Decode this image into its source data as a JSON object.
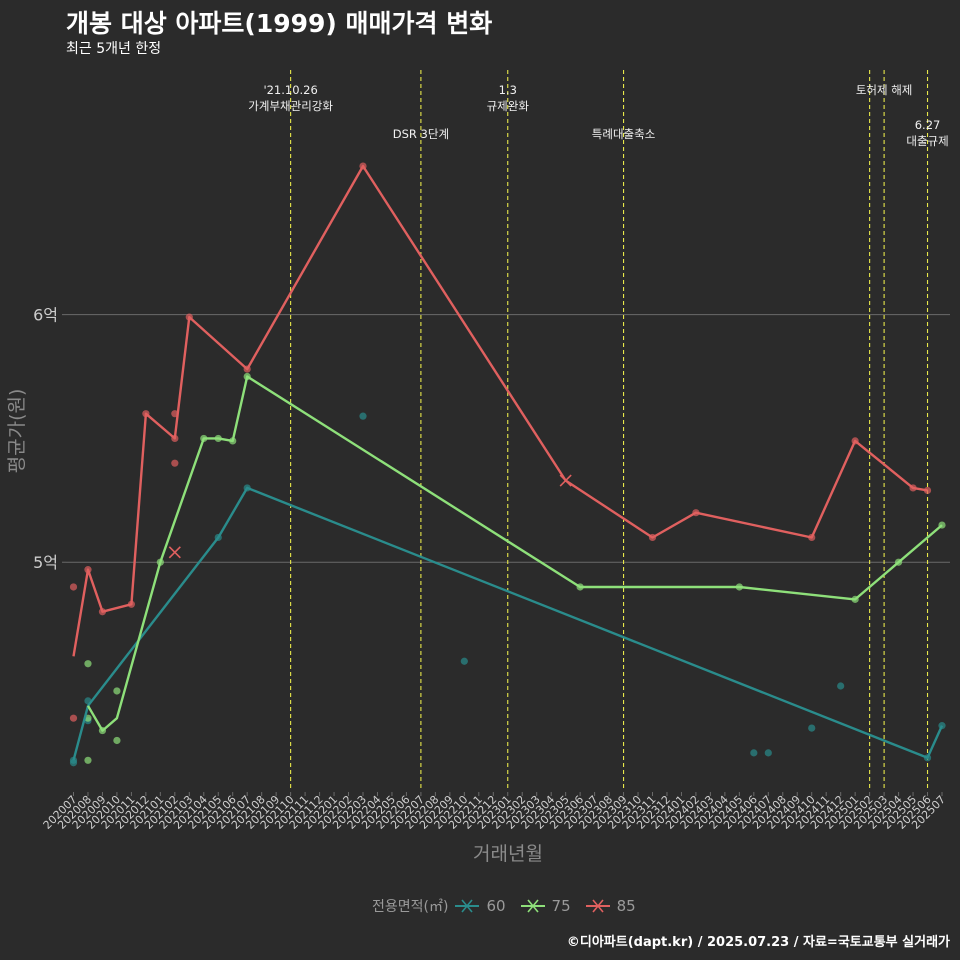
{
  "header": {
    "title": "개봉 대상 아파트(1999) 매매가격 변화",
    "subtitle": "최근 5개년 한정",
    "caption": "©디아파트(dapt.kr) / 2025.07.23 / 자료=국토교통부 실거래가"
  },
  "colors": {
    "background": "#2b2b2b",
    "s60": "#2a8c8c",
    "s75": "#8ee07a",
    "s85": "#e0605f",
    "event_line": "#e8e84a",
    "gridline": "#6a6a6a"
  },
  "legend": {
    "title": "전용면적(㎡)",
    "items": [
      "60",
      "75",
      "85"
    ]
  },
  "chart_data": {
    "type": "line",
    "title": "개봉 대상 아파트(1999) 매매가격 변화",
    "subtitle": "최근 5개년 한정",
    "xlabel": "거래년월",
    "ylabel": "평균가(원)",
    "y_unit": "억",
    "ylim": [
      4.08,
      6.98
    ],
    "yticks": [
      5,
      6
    ],
    "ytick_labels": [
      "5억",
      "6억"
    ],
    "grid": true,
    "legend_position": "bottom",
    "categories": [
      "202007",
      "202008",
      "202009",
      "202010",
      "202011",
      "202012",
      "202101",
      "202102",
      "202103",
      "202104",
      "202105",
      "202106",
      "202107",
      "202108",
      "202109",
      "202110",
      "202111",
      "202112",
      "202201",
      "202202",
      "202203",
      "202204",
      "202205",
      "202206",
      "202207",
      "202208",
      "202209",
      "202210",
      "202211",
      "202212",
      "202301",
      "202302",
      "202303",
      "202304",
      "202305",
      "202306",
      "202307",
      "202308",
      "202309",
      "202310",
      "202311",
      "202312",
      "202401",
      "202402",
      "202403",
      "202404",
      "202405",
      "202406",
      "202407",
      "202408",
      "202409",
      "202410",
      "202411",
      "202412",
      "202501",
      "202502",
      "202503",
      "202504",
      "202505",
      "202506",
      "202507"
    ],
    "series": [
      {
        "name": "60",
        "line": [
          [
            "202007",
            4.2
          ],
          [
            "202008",
            4.42
          ],
          [
            "202105",
            5.1
          ],
          [
            "202107",
            5.3
          ],
          [
            "202506",
            4.21
          ],
          [
            "202507",
            4.34
          ]
        ],
        "points": [
          [
            "202007",
            4.19
          ],
          [
            "202007",
            4.2
          ],
          [
            "202008",
            4.36
          ],
          [
            "202008",
            4.44
          ],
          [
            "202105",
            5.1
          ],
          [
            "202107",
            5.3
          ],
          [
            "202203",
            5.59
          ],
          [
            "202210",
            4.6
          ],
          [
            "202406",
            4.23
          ],
          [
            "202407",
            4.23
          ],
          [
            "202410",
            4.33
          ],
          [
            "202412",
            4.5
          ],
          [
            "202506",
            4.21
          ],
          [
            "202507",
            4.34
          ]
        ],
        "cancelled": []
      },
      {
        "name": "75",
        "line": [
          [
            "202008",
            4.42
          ],
          [
            "202009",
            4.32
          ],
          [
            "202010",
            4.37
          ],
          [
            "202101",
            5.0
          ],
          [
            "202104",
            5.5
          ],
          [
            "202105",
            5.5
          ],
          [
            "202106",
            5.49
          ],
          [
            "202107",
            5.75
          ],
          [
            "202306",
            4.9
          ],
          [
            "202405",
            4.9
          ],
          [
            "202501",
            4.85
          ],
          [
            "202504",
            5.0
          ],
          [
            "202507",
            5.15
          ]
        ],
        "points": [
          [
            "202008",
            4.59
          ],
          [
            "202008",
            4.2
          ],
          [
            "202008",
            4.37
          ],
          [
            "202009",
            4.32
          ],
          [
            "202010",
            4.48
          ],
          [
            "202010",
            4.28
          ],
          [
            "202101",
            5.0
          ],
          [
            "202104",
            5.5
          ],
          [
            "202105",
            5.5
          ],
          [
            "202106",
            5.49
          ],
          [
            "202107",
            5.75
          ],
          [
            "202306",
            4.9
          ],
          [
            "202405",
            4.9
          ],
          [
            "202501",
            4.85
          ],
          [
            "202504",
            5.0
          ],
          [
            "202507",
            5.15
          ]
        ],
        "cancelled": []
      },
      {
        "name": "85",
        "line": [
          [
            "202007",
            4.62
          ],
          [
            "202008",
            4.97
          ],
          [
            "202009",
            4.8
          ],
          [
            "202011",
            4.83
          ],
          [
            "202012",
            5.6
          ],
          [
            "202102",
            5.5
          ],
          [
            "202103",
            5.99
          ],
          [
            "202107",
            5.78
          ],
          [
            "202203",
            6.6
          ],
          [
            "202305",
            5.33
          ],
          [
            "202311",
            5.1
          ],
          [
            "202402",
            5.2
          ],
          [
            "202410",
            5.1
          ],
          [
            "202501",
            5.49
          ],
          [
            "202505",
            5.3
          ],
          [
            "202506",
            5.29
          ]
        ],
        "points": [
          [
            "202007",
            4.9
          ],
          [
            "202007",
            4.37
          ],
          [
            "202008",
            4.97
          ],
          [
            "202009",
            4.8
          ],
          [
            "202011",
            4.83
          ],
          [
            "202012",
            5.6
          ],
          [
            "202102",
            5.6
          ],
          [
            "202102",
            5.4
          ],
          [
            "202102",
            5.5
          ],
          [
            "202103",
            5.99
          ],
          [
            "202107",
            5.78
          ],
          [
            "202203",
            6.6
          ],
          [
            "202311",
            5.1
          ],
          [
            "202402",
            5.2
          ],
          [
            "202410",
            5.1
          ],
          [
            "202501",
            5.49
          ],
          [
            "202505",
            5.3
          ],
          [
            "202506",
            5.29
          ]
        ],
        "cancelled": [
          [
            "202102",
            5.04
          ],
          [
            "202305",
            5.33
          ]
        ]
      }
    ],
    "events": [
      {
        "x": "202110",
        "label": "'21.10.26\n가계부채관리강화",
        "row": 1
      },
      {
        "x": "202207",
        "label": "DSR 3단계",
        "row": 2
      },
      {
        "x": "202301",
        "label": "1.3\n규제완화",
        "row": 1
      },
      {
        "x": "202309",
        "label": "특례대출축소",
        "row": 2
      },
      {
        "x": "202502",
        "label": "",
        "row": 0
      },
      {
        "x": "202503",
        "label": "토허제 해제",
        "row": 1
      },
      {
        "x": "202506",
        "label": "6.27\n대출규제",
        "row": 3
      }
    ]
  }
}
